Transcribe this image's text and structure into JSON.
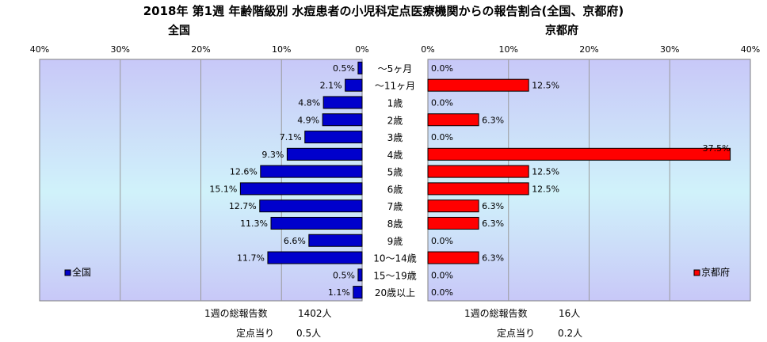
{
  "title": "2018年 第1週 年齢階級別 水痘患者の小児科定点医療機関からの報告割合(全国、京都府)",
  "age_groups": [
    "～5ヶ月",
    "～11ヶ月",
    "1歳",
    "2歳",
    "3歳",
    "4歳",
    "5歳",
    "6歳",
    "7歳",
    "8歳",
    "9歳",
    "10～14歳",
    "15～19歳",
    "20歳以上"
  ],
  "chart_data": [
    {
      "type": "bar",
      "title": "全国",
      "orientation": "horizontal-reversed",
      "categories": [
        "～5ヶ月",
        "～11ヶ月",
        "1歳",
        "2歳",
        "3歳",
        "4歳",
        "5歳",
        "6歳",
        "7歳",
        "8歳",
        "9歳",
        "10～14歳",
        "15～19歳",
        "20歳以上"
      ],
      "series": [
        {
          "name": "全国",
          "values": [
            0.5,
            2.1,
            4.8,
            4.9,
            7.1,
            9.3,
            12.6,
            15.1,
            12.7,
            11.3,
            6.6,
            11.7,
            0.5,
            1.1
          ],
          "color": "#0000cc"
        }
      ],
      "data_labels": [
        "0.5%",
        "2.1%",
        "4.8%",
        "4.9%",
        "7.1%",
        "9.3%",
        "12.6%",
        "15.1%",
        "12.7%",
        "11.3%",
        "6.6%",
        "11.7%",
        "0.5%",
        "1.1%"
      ],
      "xlim": [
        0,
        40
      ],
      "tick_labels": [
        "40%",
        "30%",
        "20%",
        "10%",
        "0%"
      ],
      "legend": "bottom-left",
      "footer": {
        "total_label": "1週の総報告数",
        "total_value": "1402人",
        "per_label": "定点当り",
        "per_value": "0.5人"
      }
    },
    {
      "type": "bar",
      "title": "京都府",
      "orientation": "horizontal",
      "categories": [
        "～5ヶ月",
        "～11ヶ月",
        "1歳",
        "2歳",
        "3歳",
        "4歳",
        "5歳",
        "6歳",
        "7歳",
        "8歳",
        "9歳",
        "10～14歳",
        "15～19歳",
        "20歳以上"
      ],
      "series": [
        {
          "name": "京都府",
          "values": [
            0.0,
            12.5,
            0.0,
            6.3,
            0.0,
            37.5,
            12.5,
            12.5,
            6.3,
            6.3,
            0.0,
            6.3,
            0.0,
            0.0
          ],
          "color": "#ff0000"
        }
      ],
      "data_labels": [
        "0.0%",
        "12.5%",
        "0.0%",
        "6.3%",
        "0.0%",
        "37.5%",
        "12.5%",
        "12.5%",
        "6.3%",
        "6.3%",
        "0.0%",
        "6.3%",
        "0.0%",
        "0.0%"
      ],
      "xlim": [
        0,
        40
      ],
      "tick_labels": [
        "0%",
        "10%",
        "20%",
        "30%",
        "40%"
      ],
      "legend": "bottom-right",
      "footer": {
        "total_label": "1週の総報告数",
        "total_value": "16人",
        "per_label": "定点当り",
        "per_value": "0.2人"
      }
    }
  ]
}
